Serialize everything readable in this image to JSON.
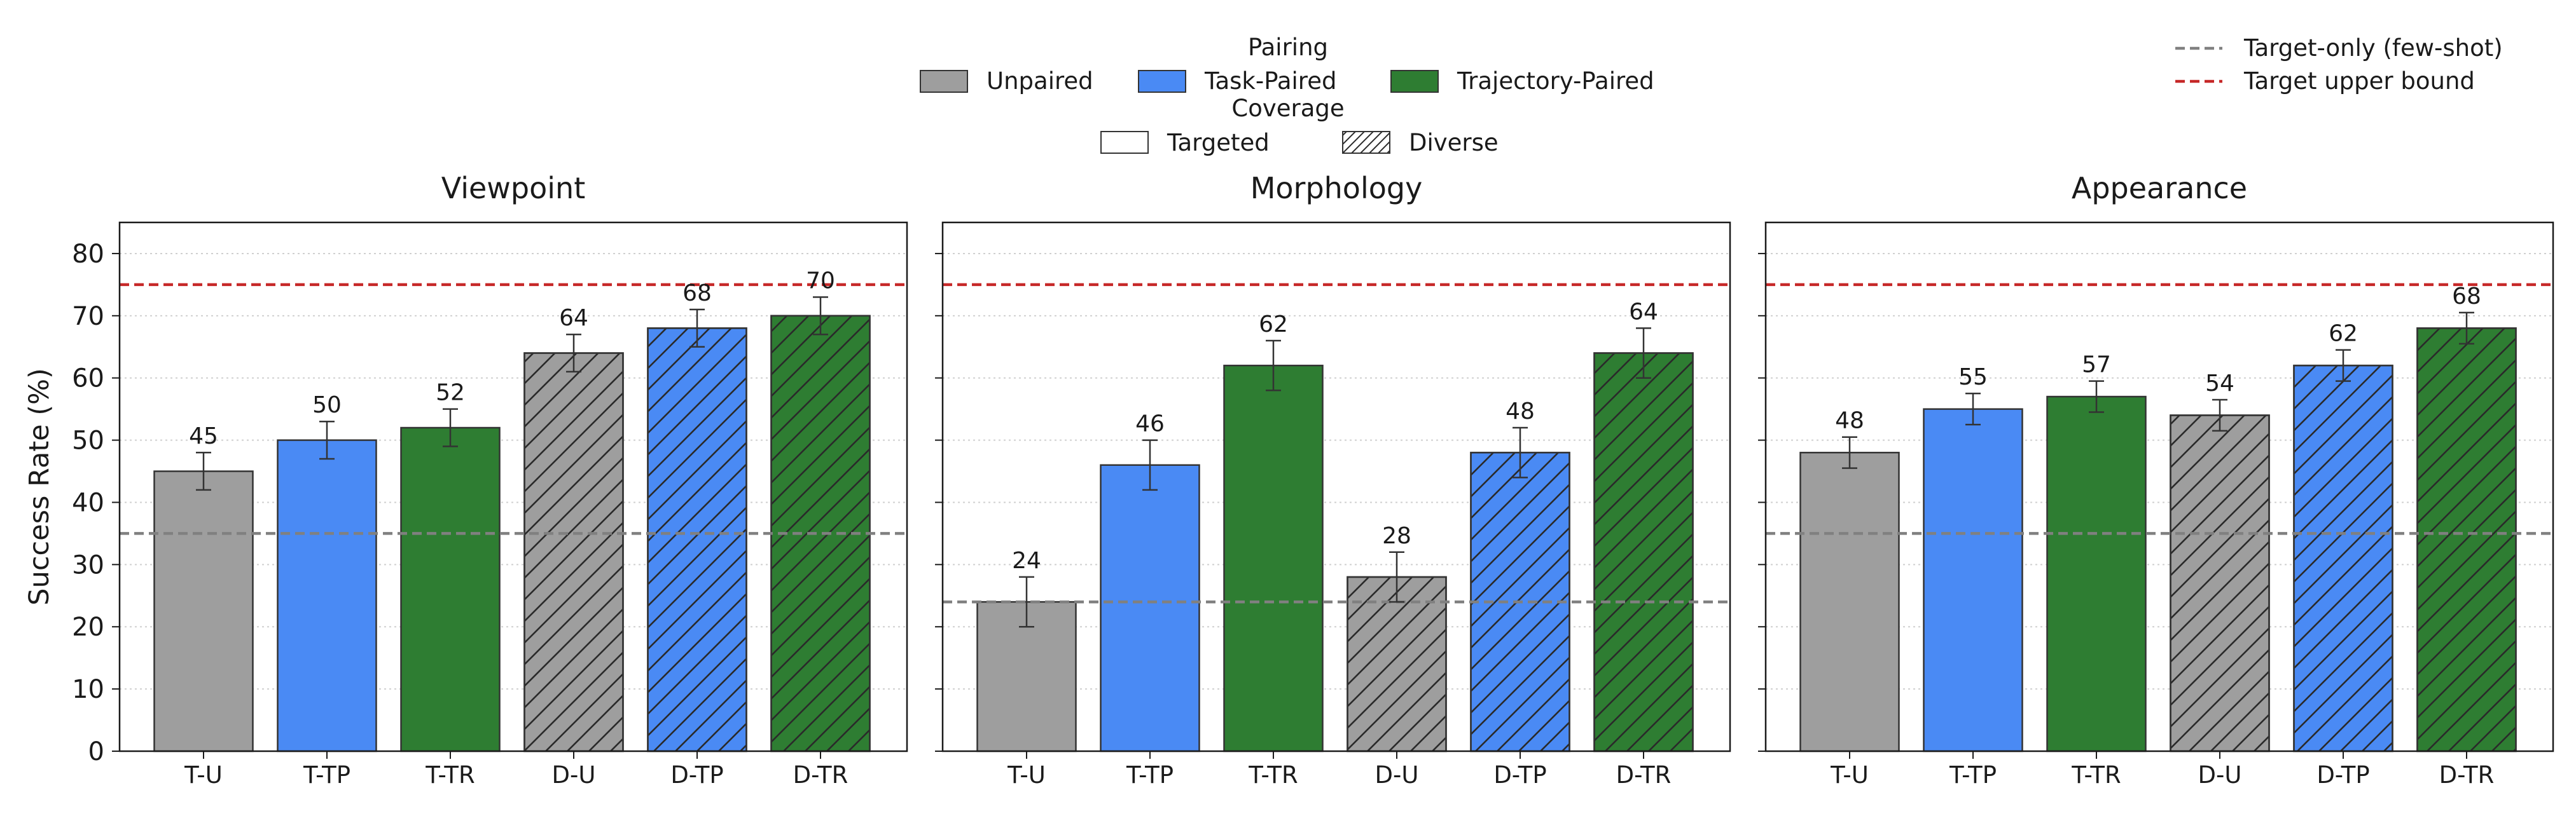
{
  "legend": {
    "pairing_title": "Pairing",
    "pairing": [
      {
        "label": "Unpaired",
        "color": "#9e9e9e"
      },
      {
        "label": "Task-Paired",
        "color": "#4a8af4"
      },
      {
        "label": "Trajectory-Paired",
        "color": "#2e7d32"
      }
    ],
    "coverage_title": "Coverage",
    "coverage": [
      {
        "label": "Targeted",
        "hatch": "none"
      },
      {
        "label": "Diverse",
        "hatch": "diagonal"
      }
    ],
    "lines": [
      {
        "label": "Target-only (few-shot)",
        "color": "#808080",
        "style": "dashed"
      },
      {
        "label": "Target upper bound",
        "color": "#c62828",
        "style": "dashed"
      }
    ]
  },
  "chart_data": [
    {
      "type": "bar",
      "title": "Viewpoint",
      "ylabel": "Success Rate (%)",
      "ylim": [
        0,
        85
      ],
      "yticks": [
        0,
        10,
        20,
        30,
        40,
        50,
        60,
        70,
        80
      ],
      "categories": [
        "T-U",
        "T-TP",
        "T-TR",
        "D-U",
        "D-TP",
        "D-TR"
      ],
      "values": [
        45,
        50,
        52,
        64,
        68,
        70
      ],
      "errors": [
        3,
        3,
        3,
        3,
        3,
        3
      ],
      "pairing": [
        "Unpaired",
        "Task-Paired",
        "Trajectory-Paired",
        "Unpaired",
        "Task-Paired",
        "Trajectory-Paired"
      ],
      "coverage": [
        "Targeted",
        "Targeted",
        "Targeted",
        "Diverse",
        "Diverse",
        "Diverse"
      ],
      "target_only": 35,
      "upper_bound": 75
    },
    {
      "type": "bar",
      "title": "Morphology",
      "ylabel": "",
      "ylim": [
        0,
        85
      ],
      "yticks": [
        0,
        10,
        20,
        30,
        40,
        50,
        60,
        70,
        80
      ],
      "categories": [
        "T-U",
        "T-TP",
        "T-TR",
        "D-U",
        "D-TP",
        "D-TR"
      ],
      "values": [
        24,
        46,
        62,
        28,
        48,
        64
      ],
      "errors": [
        4,
        4,
        4,
        4,
        4,
        4
      ],
      "pairing": [
        "Unpaired",
        "Task-Paired",
        "Trajectory-Paired",
        "Unpaired",
        "Task-Paired",
        "Trajectory-Paired"
      ],
      "coverage": [
        "Targeted",
        "Targeted",
        "Targeted",
        "Diverse",
        "Diverse",
        "Diverse"
      ],
      "target_only": 24,
      "upper_bound": 75
    },
    {
      "type": "bar",
      "title": "Appearance",
      "ylabel": "",
      "ylim": [
        0,
        85
      ],
      "yticks": [
        0,
        10,
        20,
        30,
        40,
        50,
        60,
        70,
        80
      ],
      "categories": [
        "T-U",
        "T-TP",
        "T-TR",
        "D-U",
        "D-TP",
        "D-TR"
      ],
      "values": [
        48,
        55,
        57,
        54,
        62,
        68
      ],
      "errors": [
        2.5,
        2.5,
        2.5,
        2.5,
        2.5,
        2.5
      ],
      "pairing": [
        "Unpaired",
        "Task-Paired",
        "Trajectory-Paired",
        "Unpaired",
        "Task-Paired",
        "Trajectory-Paired"
      ],
      "coverage": [
        "Targeted",
        "Targeted",
        "Targeted",
        "Diverse",
        "Diverse",
        "Diverse"
      ],
      "target_only": 35,
      "upper_bound": 75
    }
  ]
}
